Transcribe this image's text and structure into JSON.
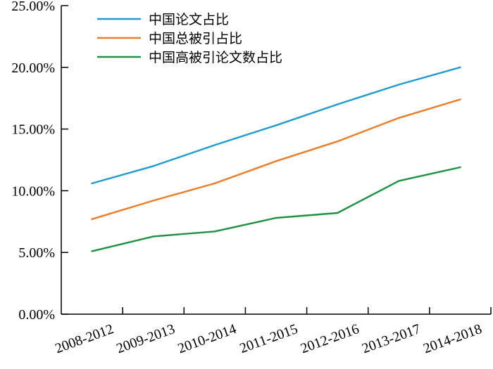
{
  "chart_data": {
    "type": "line",
    "categories": [
      "2008-2012",
      "2009-2013",
      "2010-2014",
      "2011-2015",
      "2012-2016",
      "2013-2017",
      "2014-2018"
    ],
    "series": [
      {
        "name": "中国论文占比",
        "color": "#1f9bd1",
        "values": [
          10.6,
          12.0,
          13.7,
          15.3,
          17.0,
          18.6,
          20.0
        ]
      },
      {
        "name": "中国总被引占比",
        "color": "#ee7b26",
        "values": [
          7.7,
          9.2,
          10.6,
          12.4,
          14.0,
          15.9,
          17.4
        ]
      },
      {
        "name": "中国高被引论文数占比",
        "color": "#1e9243",
        "values": [
          5.1,
          6.3,
          6.7,
          7.8,
          8.2,
          10.8,
          11.9
        ]
      }
    ],
    "ylim": [
      0,
      25
    ],
    "y_ticks": [
      "0.00%",
      "5.00%",
      "10.00%",
      "15.00%",
      "20.00%",
      "25.00%"
    ],
    "y_tick_values": [
      0,
      5,
      10,
      15,
      20,
      25
    ],
    "legend_position": "top-left",
    "grid": false
  }
}
